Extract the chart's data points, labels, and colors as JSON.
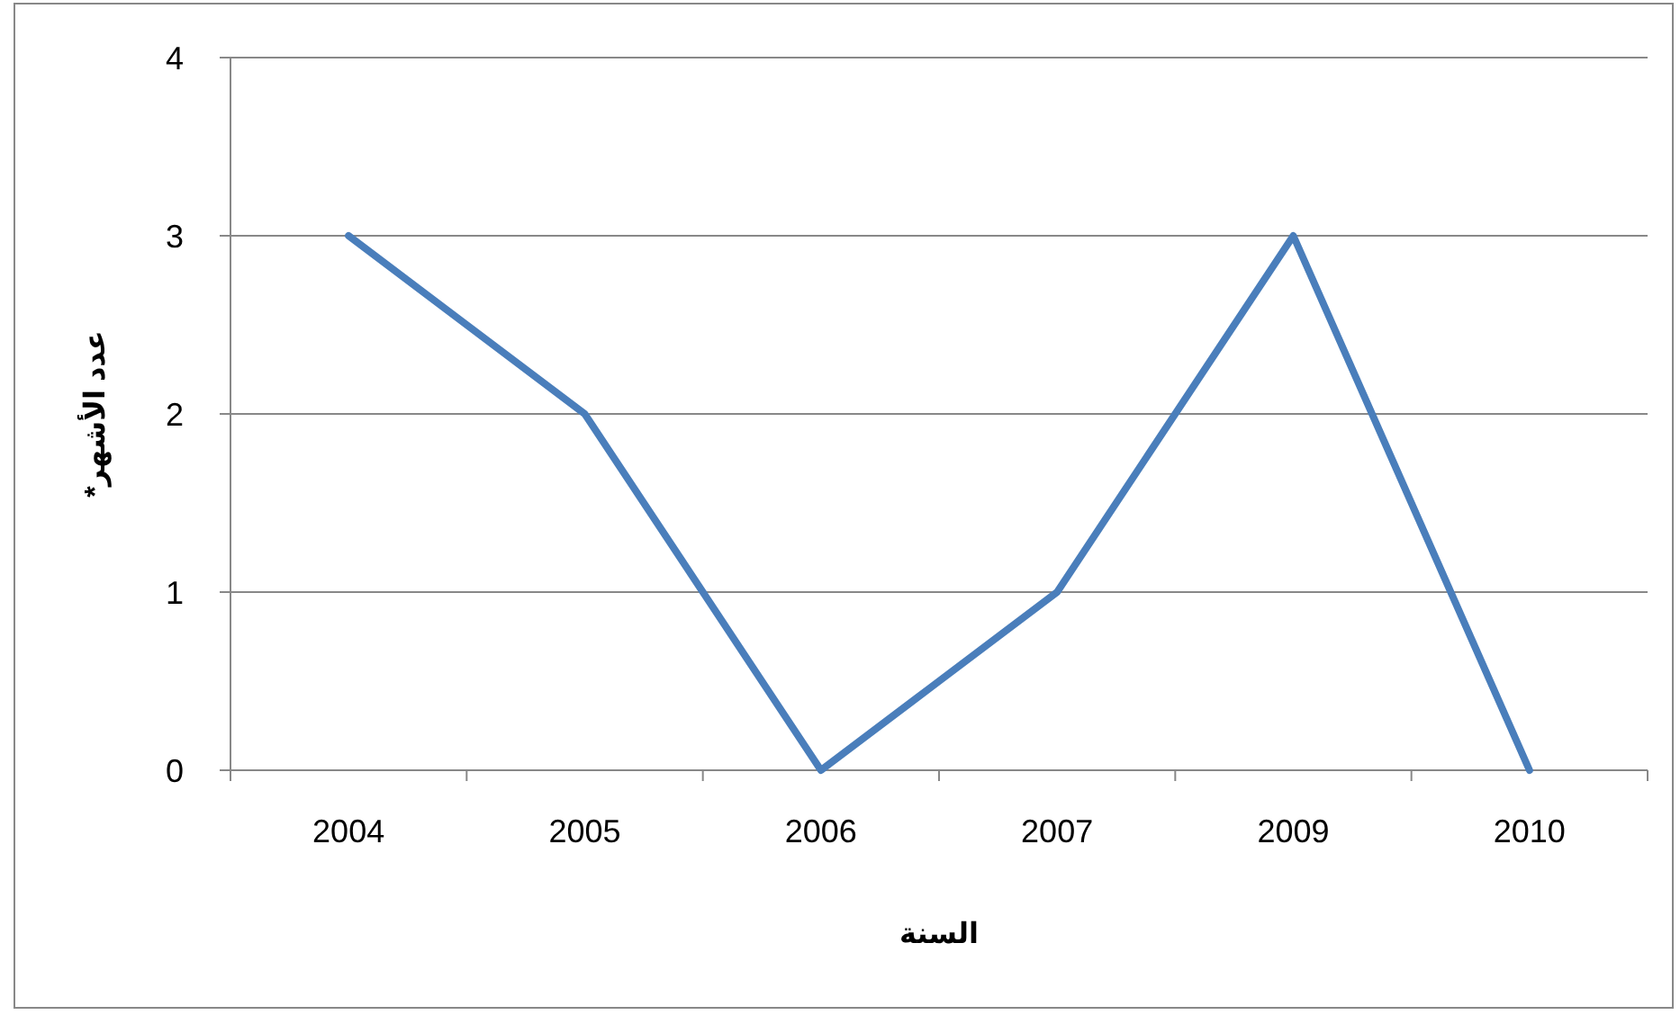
{
  "chart_data": {
    "type": "line",
    "xlabel": "السنة",
    "ylabel": "عدد الأشهر*",
    "categories": [
      "2004",
      "2005",
      "2006",
      "2007",
      "2009",
      "2010"
    ],
    "series": [
      {
        "color": "#4a7ebb",
        "values": [
          3,
          2,
          0,
          1,
          3,
          0
        ]
      }
    ],
    "ylim": [
      0,
      4
    ],
    "yticks": [
      0,
      1,
      2,
      3,
      4
    ],
    "grid": "y",
    "marker": "none",
    "line_style": "solid"
  }
}
